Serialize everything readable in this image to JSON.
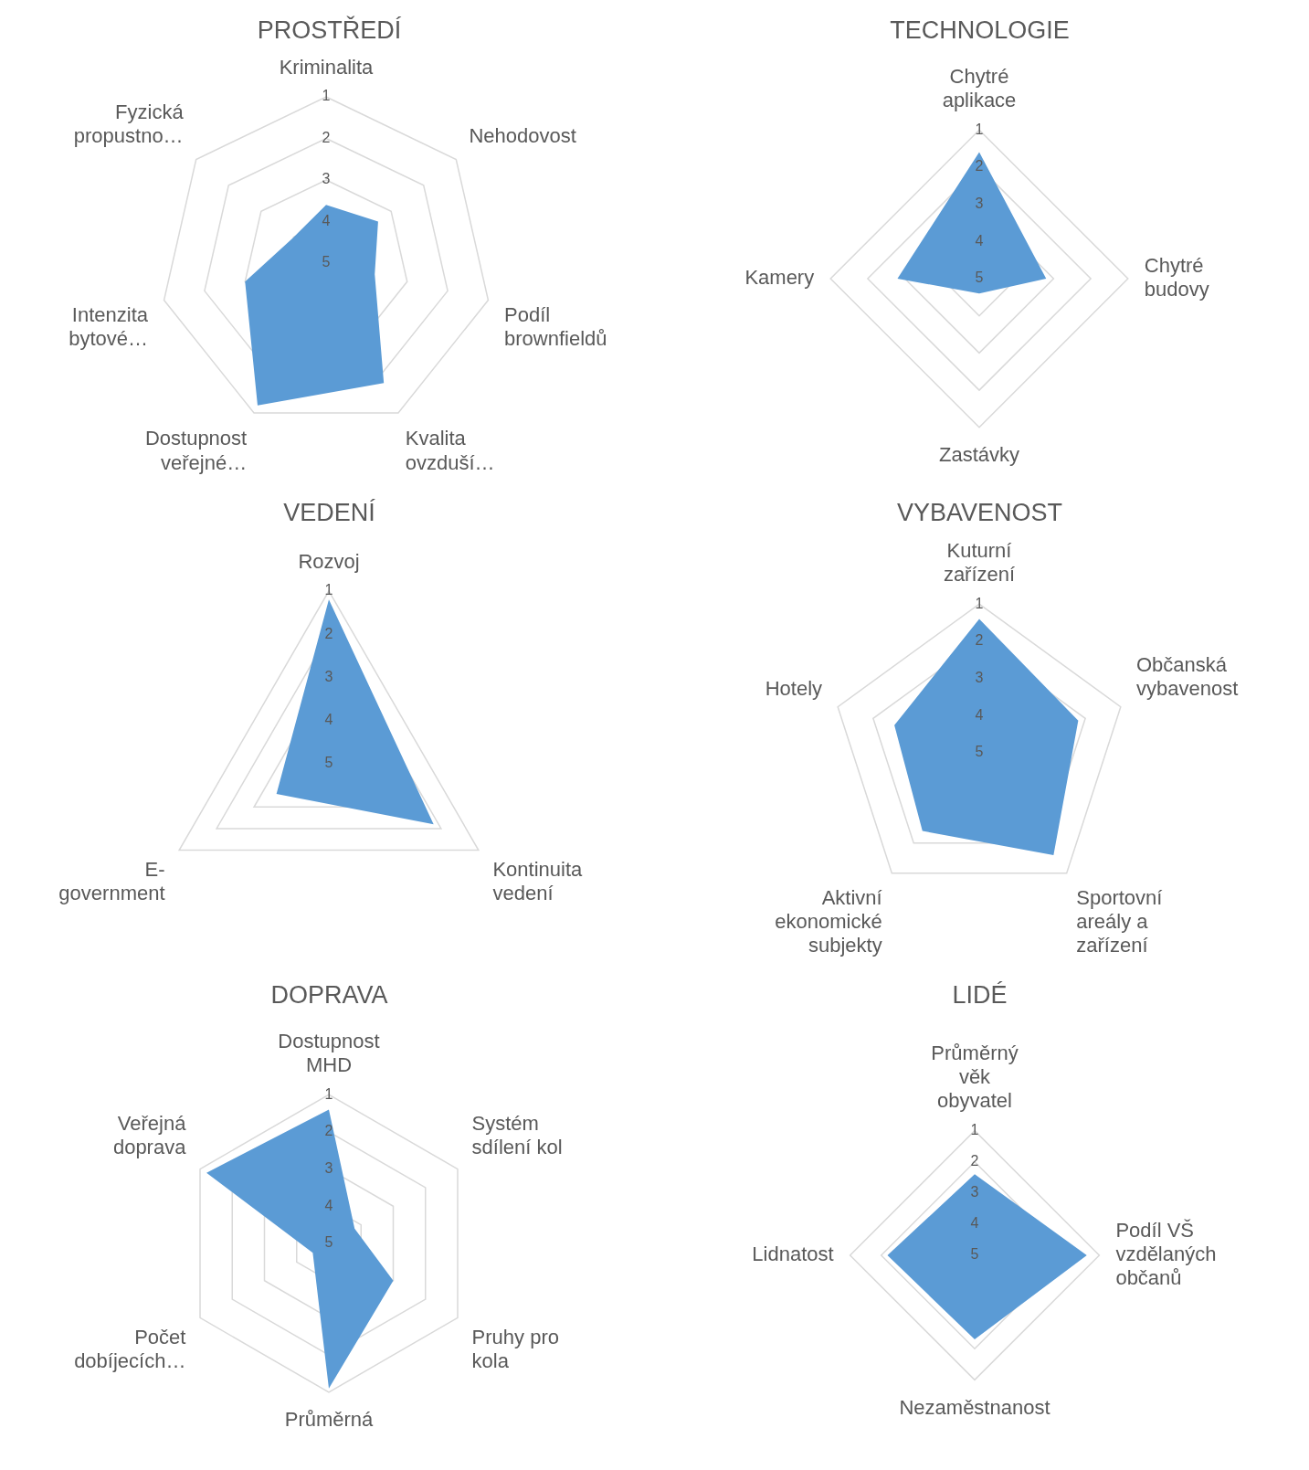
{
  "chart_data": [
    {
      "type": "radar",
      "title": "PROSTŘEDÍ",
      "categories": [
        "Kriminalita",
        "Nehodovost",
        "Podíl brownfieldů",
        "Kvalita ovzduší…",
        "Dostupnost veřejné…",
        "Intenzita bytové…",
        "Fyzická propustno…"
      ],
      "series": [
        {
          "color": "#5b9bd5",
          "values": [
            3.6,
            3.4,
            3.8,
            1.8,
            1.2,
            3.0,
            4.0
          ]
        }
      ],
      "ylim": [
        5,
        1
      ],
      "yticks": [
        1,
        2,
        3,
        4,
        5
      ],
      "grid": true
    },
    {
      "type": "radar",
      "title": "TECHNOLOGIE",
      "categories": [
        "Chytré aplikace",
        "Chytré budovy",
        "Zastávky",
        "Kamery"
      ],
      "series": [
        {
          "color": "#5b9bd5",
          "values": [
            1.6,
            3.2,
            4.6,
            2.8
          ]
        }
      ],
      "ylim": [
        5,
        1
      ],
      "yticks": [
        1,
        2,
        3,
        4,
        5
      ],
      "grid": true
    },
    {
      "type": "radar",
      "title": "VEDENÍ",
      "categories": [
        "Rozvoj",
        "Kontinuita vedení",
        "E- government"
      ],
      "series": [
        {
          "color": "#5b9bd5",
          "values": [
            1.2,
            2.2,
            3.6
          ]
        }
      ],
      "ylim": [
        5,
        1
      ],
      "yticks": [
        1,
        2,
        3,
        4,
        5
      ],
      "grid": true
    },
    {
      "type": "radar",
      "title": "VYBAVENOST",
      "categories": [
        "Kuturní zařízení",
        "Občanská vybavenost",
        "Sportovní areály a zařízení",
        "Aktivní ekonomické subjekty",
        "Hotely"
      ],
      "series": [
        {
          "color": "#5b9bd5",
          "values": [
            1.4,
            2.2,
            1.6,
            2.4,
            2.6
          ]
        }
      ],
      "ylim": [
        5,
        1
      ],
      "yticks": [
        1,
        2,
        3,
        4,
        5
      ],
      "grid": true
    },
    {
      "type": "radar",
      "title": "DOPRAVA",
      "categories": [
        "Dostupnost MHD",
        "Systém sdílení kol",
        "Pruhy pro kola",
        "Průměrná",
        "Počet dobíjecích…",
        "Veřejná doprava"
      ],
      "series": [
        {
          "color": "#5b9bd5",
          "values": [
            1.4,
            4.2,
            3.0,
            1.1,
            4.5,
            1.2
          ]
        }
      ],
      "ylim": [
        5,
        1
      ],
      "yticks": [
        1,
        2,
        3,
        4,
        5
      ],
      "grid": true
    },
    {
      "type": "radar",
      "title": "LIDÉ",
      "categories": [
        "Průměrný věk obyvatel",
        "Podíl VŠ vzdělaných občanů",
        "Nezaměstnanost",
        "Lidnatost"
      ],
      "series": [
        {
          "color": "#5b9bd5",
          "values": [
            2.4,
            1.4,
            2.3,
            2.2
          ]
        }
      ],
      "ylim": [
        5,
        1
      ],
      "yticks": [
        1,
        2,
        3,
        4,
        5
      ],
      "grid": true
    }
  ]
}
